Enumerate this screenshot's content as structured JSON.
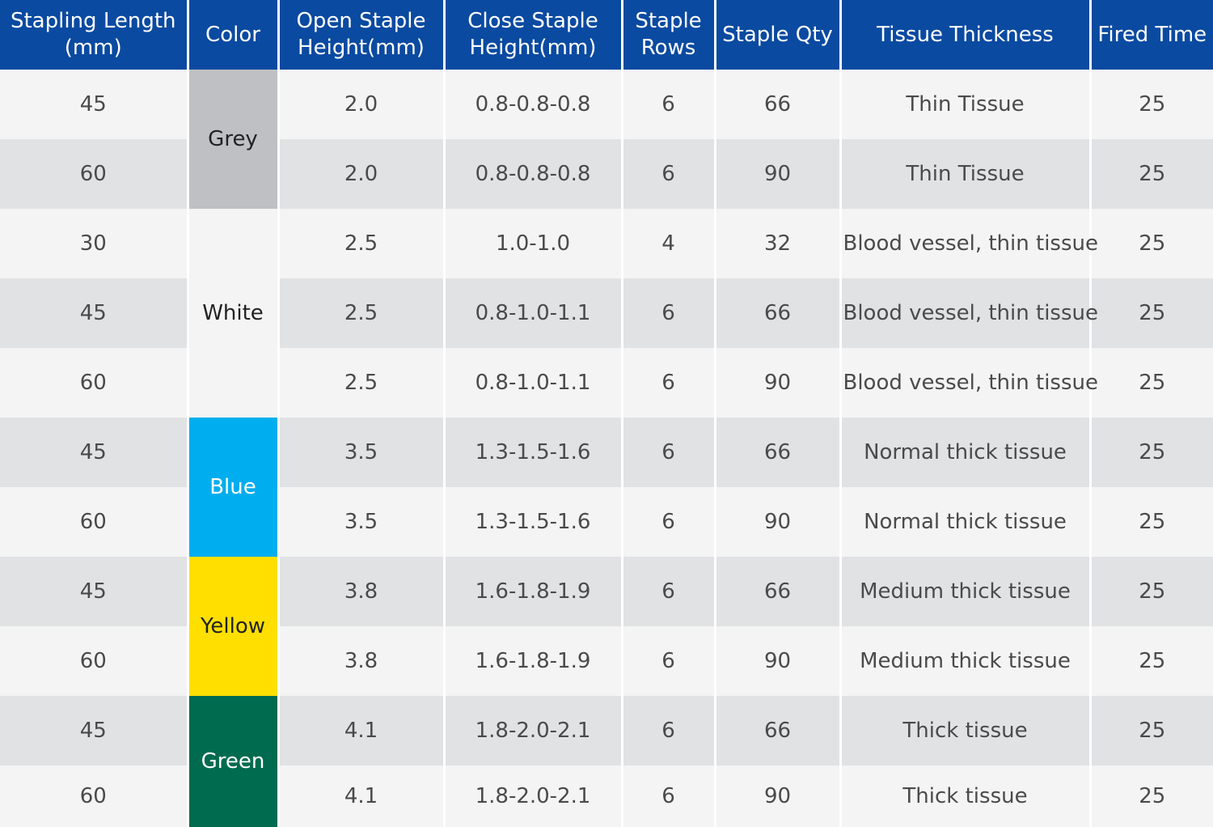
{
  "headers": [
    {
      "line1": "Stapling Length",
      "line2": "(mm)"
    },
    {
      "line1": "Color",
      "line2": ""
    },
    {
      "line1": "Open Staple",
      "line2": "Height(mm)"
    },
    {
      "line1": "Close Staple",
      "line2": "Height(mm)"
    },
    {
      "line1": "Staple",
      "line2": "Rows"
    },
    {
      "line1": "Staple Qty",
      "line2": ""
    },
    {
      "line1": "Tissue Thickness",
      "line2": ""
    },
    {
      "line1": "Fired Time",
      "line2": ""
    }
  ],
  "colors": {
    "header_bg": "#0a4aa1",
    "row_light": "#f4f4f4",
    "row_dark": "#e1e2e4",
    "grey": "#bfc0c3",
    "white": "#f4f4f4",
    "blue": "#00adee",
    "yellow": "#ffdf00",
    "green": "#006b4f"
  },
  "color_groups": [
    {
      "label": "Grey",
      "swatch": "#bfc0c3",
      "text_color": "#222222",
      "rows": 2
    },
    {
      "label": "White",
      "swatch": "#f4f4f4",
      "text_color": "#222222",
      "rows": 3
    },
    {
      "label": "Blue",
      "swatch": "#00adee",
      "text_color": "#ffffff",
      "rows": 2
    },
    {
      "label": "Yellow",
      "swatch": "#ffdf00",
      "text_color": "#222222",
      "rows": 2
    },
    {
      "label": "Green",
      "swatch": "#006b4f",
      "text_color": "#ffffff",
      "rows": 2
    }
  ],
  "rows": [
    {
      "length": "45",
      "open": "2.0",
      "close": "0.8-0.8-0.8",
      "staple_rows": "6",
      "qty": "66",
      "tissue": "Thin Tissue",
      "fired": "25"
    },
    {
      "length": "60",
      "open": "2.0",
      "close": "0.8-0.8-0.8",
      "staple_rows": "6",
      "qty": "90",
      "tissue": "Thin Tissue",
      "fired": "25"
    },
    {
      "length": "30",
      "open": "2.5",
      "close": "1.0-1.0",
      "staple_rows": "4",
      "qty": "32",
      "tissue": "Blood vessel, thin tissue",
      "fired": "25"
    },
    {
      "length": "45",
      "open": "2.5",
      "close": "0.8-1.0-1.1",
      "staple_rows": "6",
      "qty": "66",
      "tissue": "Blood vessel, thin tissue",
      "fired": "25"
    },
    {
      "length": "60",
      "open": "2.5",
      "close": "0.8-1.0-1.1",
      "staple_rows": "6",
      "qty": "90",
      "tissue": "Blood vessel, thin tissue",
      "fired": "25"
    },
    {
      "length": "45",
      "open": "3.5",
      "close": "1.3-1.5-1.6",
      "staple_rows": "6",
      "qty": "66",
      "tissue": "Normal thick tissue",
      "fired": "25"
    },
    {
      "length": "60",
      "open": "3.5",
      "close": "1.3-1.5-1.6",
      "staple_rows": "6",
      "qty": "90",
      "tissue": "Normal thick tissue",
      "fired": "25"
    },
    {
      "length": "45",
      "open": "3.8",
      "close": "1.6-1.8-1.9",
      "staple_rows": "6",
      "qty": "66",
      "tissue": "Medium thick tissue",
      "fired": "25"
    },
    {
      "length": "60",
      "open": "3.8",
      "close": "1.6-1.8-1.9",
      "staple_rows": "6",
      "qty": "90",
      "tissue": "Medium thick tissue",
      "fired": "25"
    },
    {
      "length": "45",
      "open": "4.1",
      "close": "1.8-2.0-2.1",
      "staple_rows": "6",
      "qty": "66",
      "tissue": "Thick tissue",
      "fired": "25"
    },
    {
      "length": "60",
      "open": "4.1",
      "close": "1.8-2.0-2.1",
      "staple_rows": "6",
      "qty": "90",
      "tissue": "Thick tissue",
      "fired": "25"
    }
  ]
}
